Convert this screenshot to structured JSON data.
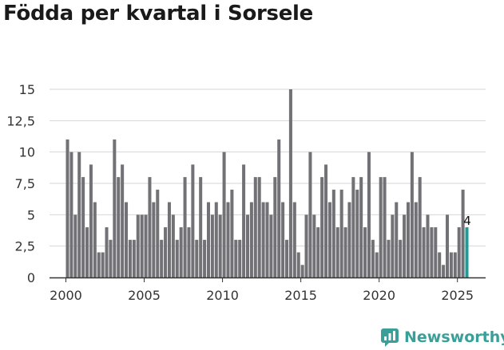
{
  "page": {
    "title": "Födda per kvartal i Sorsele"
  },
  "brand": {
    "name": "Newsworthy",
    "color": "#3a9f98"
  },
  "colors": {
    "bar": "#727175",
    "highlight": "#1e9c96",
    "grid": "#d6d6d6",
    "axis": "#333333",
    "text": "#333333"
  },
  "chart_data": {
    "type": "bar",
    "title": "Födda per kvartal i Sorsele",
    "xlabel": "",
    "ylabel": "",
    "ylim": [
      0,
      15
    ],
    "yticks": [
      0,
      2.5,
      5,
      7.5,
      10,
      12.5,
      15
    ],
    "ytick_labels": [
      "0",
      "2,5",
      "5",
      "7,5",
      "10",
      "12,5",
      "15"
    ],
    "xticks": [
      "2000",
      "2005",
      "2010",
      "2015",
      "2020",
      "2025"
    ],
    "start_year": 2000,
    "periods_per_year": 4,
    "values": [
      11,
      10,
      5,
      10,
      8,
      4,
      9,
      6,
      2,
      2,
      4,
      3,
      11,
      8,
      9,
      6,
      3,
      3,
      5,
      5,
      5,
      8,
      6,
      7,
      3,
      4,
      6,
      5,
      3,
      4,
      8,
      4,
      9,
      3,
      8,
      3,
      6,
      5,
      6,
      5,
      10,
      6,
      7,
      3,
      3,
      9,
      5,
      6,
      8,
      8,
      6,
      6,
      5,
      8,
      11,
      6,
      3,
      15,
      6,
      2,
      1,
      5,
      10,
      5,
      4,
      8,
      9,
      6,
      7,
      4,
      7,
      4,
      6,
      8,
      7,
      8,
      4,
      10,
      3,
      2,
      8,
      8,
      3,
      5,
      6,
      3,
      5,
      6,
      10,
      6,
      8,
      4,
      5,
      4,
      4,
      2,
      1,
      5,
      2,
      2,
      4,
      7,
      4
    ],
    "highlight_last": true,
    "annotations": [
      {
        "label": "4",
        "target": "last"
      }
    ]
  }
}
